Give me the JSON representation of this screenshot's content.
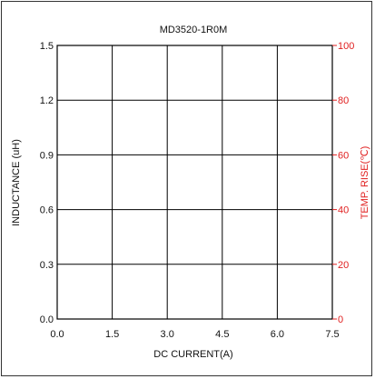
{
  "chart_data": {
    "type": "line",
    "title": "MD3520-1R0M",
    "xlabel": "DC CURRENT(A)",
    "ylabel": "INDUCTANCE (uH)",
    "y2label": "TEMP. RISE(℃)",
    "xlim": [
      0,
      7.5
    ],
    "ylim": [
      0,
      1.5
    ],
    "y2lim": [
      0,
      100
    ],
    "x_ticks": [
      "0.0",
      "1.5",
      "3.0",
      "4.5",
      "6.0",
      "7.5"
    ],
    "y_ticks": [
      "0.0",
      "0.3",
      "0.6",
      "0.9",
      "1.2",
      "1.5"
    ],
    "y2_ticks": [
      "0",
      "20",
      "40",
      "60",
      "80",
      "100"
    ],
    "grid": true,
    "series": [],
    "colors": {
      "axis": "#000000",
      "grid": "#000000",
      "secondary_axis": "#e02020",
      "text": "#111111"
    }
  }
}
